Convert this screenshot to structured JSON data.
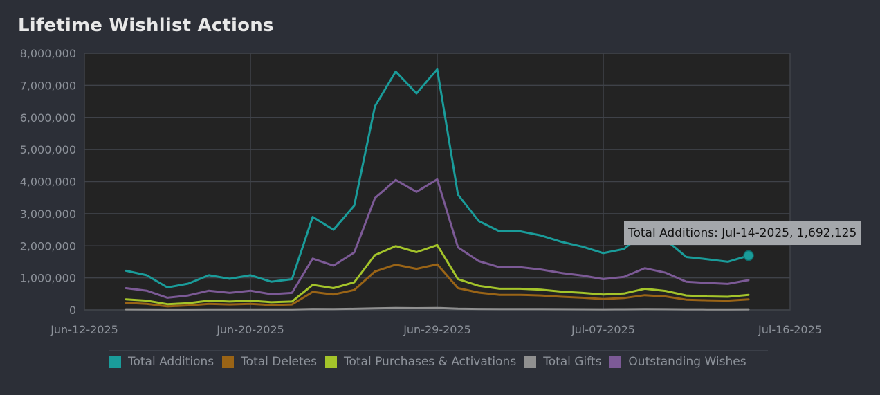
{
  "chart_data": {
    "type": "line",
    "title": "Lifetime Wishlist Actions",
    "x_ticks": [
      "Jun-12-2025",
      "Jun-20-2025",
      "Jun-29-2025",
      "Jul-07-2025",
      "Jul-16-2025"
    ],
    "y_ticks": [
      "0",
      "1,000,000",
      "2,000,000",
      "3,000,000",
      "4,000,000",
      "5,000,000",
      "6,000,000",
      "7,000,000",
      "8,000,000"
    ],
    "ylim": [
      0,
      8000000
    ],
    "x": [
      "Jun-14-2025",
      "Jun-15-2025",
      "Jun-16-2025",
      "Jun-17-2025",
      "Jun-18-2025",
      "Jun-19-2025",
      "Jun-20-2025",
      "Jun-21-2025",
      "Jun-22-2025",
      "Jun-23-2025",
      "Jun-24-2025",
      "Jun-25-2025",
      "Jun-26-2025",
      "Jun-27-2025",
      "Jun-28-2025",
      "Jun-29-2025",
      "Jun-30-2025",
      "Jul-01-2025",
      "Jul-02-2025",
      "Jul-03-2025",
      "Jul-04-2025",
      "Jul-05-2025",
      "Jul-06-2025",
      "Jul-07-2025",
      "Jul-08-2025",
      "Jul-09-2025",
      "Jul-10-2025",
      "Jul-11-2025",
      "Jul-12-2025",
      "Jul-13-2025",
      "Jul-14-2025"
    ],
    "grid": true,
    "legend_position": "bottom",
    "series": [
      {
        "name": "Total Additions",
        "color": "#1a9c9a",
        "values": [
          1220000,
          1080000,
          700000,
          820000,
          1080000,
          970000,
          1080000,
          880000,
          960000,
          2900000,
          2500000,
          3250000,
          6350000,
          7430000,
          6750000,
          7500000,
          3590000,
          2770000,
          2450000,
          2450000,
          2320000,
          2120000,
          1970000,
          1770000,
          1900000,
          2430000,
          2190000,
          1650000,
          1580000,
          1500000,
          1692125
        ]
      },
      {
        "name": "Total Deletes",
        "color": "#9a6416",
        "values": [
          220000,
          190000,
          110000,
          140000,
          190000,
          170000,
          190000,
          150000,
          170000,
          560000,
          480000,
          620000,
          1200000,
          1410000,
          1280000,
          1420000,
          680000,
          540000,
          470000,
          470000,
          450000,
          410000,
          380000,
          340000,
          370000,
          460000,
          420000,
          320000,
          300000,
          290000,
          330000
        ]
      },
      {
        "name": "Total Purchases & Activations",
        "color": "#a4c42a",
        "values": [
          330000,
          290000,
          180000,
          210000,
          290000,
          260000,
          290000,
          240000,
          260000,
          780000,
          680000,
          860000,
          1710000,
          1990000,
          1800000,
          2020000,
          960000,
          750000,
          660000,
          660000,
          630000,
          570000,
          530000,
          480000,
          510000,
          660000,
          590000,
          450000,
          420000,
          410000,
          470000
        ]
      },
      {
        "name": "Total Gifts",
        "color": "#909090",
        "values": [
          20000,
          18000,
          12000,
          14000,
          18000,
          16000,
          18000,
          15000,
          16000,
          30000,
          28000,
          35000,
          50000,
          58000,
          53000,
          60000,
          36000,
          30000,
          27000,
          27000,
          26000,
          24000,
          22000,
          20000,
          21000,
          26000,
          24000,
          19000,
          18000,
          17000,
          19000
        ]
      },
      {
        "name": "Outstanding Wishes",
        "color": "#7c5a96",
        "values": [
          680000,
          600000,
          380000,
          450000,
          600000,
          530000,
          600000,
          490000,
          530000,
          1600000,
          1380000,
          1790000,
          3490000,
          4050000,
          3680000,
          4070000,
          1950000,
          1520000,
          1330000,
          1330000,
          1260000,
          1150000,
          1070000,
          960000,
          1030000,
          1300000,
          1160000,
          880000,
          840000,
          810000,
          930000
        ]
      }
    ],
    "tooltip": {
      "series": "Total Additions",
      "x": "Jul-14-2025",
      "value": 1692125,
      "text": "Total Additions: Jul-14-2025, 1,692,125"
    }
  }
}
